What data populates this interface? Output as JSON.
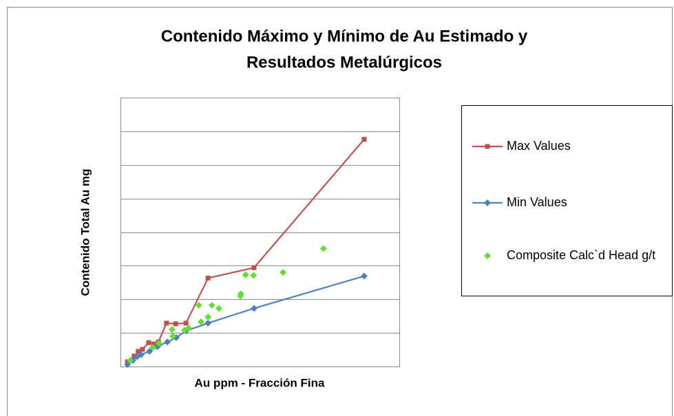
{
  "chart_data": {
    "type": "scatter",
    "title": "Contenido Máximo y Mínimo de Au Estimado  y",
    "subtitle": "Resultados Metalúrgicos",
    "xlabel": "Au ppm - Fracción Fina",
    "ylabel": "Contenido Total Au mg",
    "xlim": [
      0,
      10
    ],
    "ylim": [
      0,
      8
    ],
    "yticks": [
      1,
      2,
      3,
      4,
      5,
      6,
      7
    ],
    "grid": true,
    "legend": "right",
    "series": [
      {
        "name": "Max Values",
        "color": "#c0504d",
        "marker": "square",
        "line": true,
        "x": [
          0.25,
          0.49,
          0.64,
          0.79,
          1.01,
          1.19,
          1.36,
          1.65,
          1.98,
          2.35,
          3.14,
          4.79,
          8.74
        ],
        "values": [
          0.14,
          0.31,
          0.45,
          0.51,
          0.71,
          0.67,
          0.73,
          1.29,
          1.27,
          1.29,
          2.63,
          2.94,
          6.76
        ]
      },
      {
        "name": "Min Values",
        "color": "#4f81bd",
        "marker": "diamond",
        "line": true,
        "x": [
          0.25,
          0.44,
          0.59,
          0.74,
          1.04,
          1.33,
          1.68,
          2.0,
          2.35,
          3.14,
          4.79,
          8.74
        ],
        "values": [
          0.06,
          0.18,
          0.29,
          0.35,
          0.45,
          0.59,
          0.73,
          0.86,
          1.06,
          1.29,
          1.73,
          2.69
        ]
      },
      {
        "name": "Composite Calc`d Head g/t",
        "color": "#66dd33",
        "marker": "diamond",
        "line": false,
        "x": [
          0.35,
          1.16,
          1.38,
          1.85,
          1.88,
          2.3,
          2.44,
          2.81,
          2.89,
          3.14,
          3.28,
          3.53,
          4.3,
          4.32,
          4.49,
          4.77,
          5.83,
          7.28
        ],
        "values": [
          0.18,
          0.57,
          0.69,
          1.1,
          0.9,
          1.08,
          1.14,
          1.82,
          1.33,
          1.47,
          1.82,
          1.73,
          2.1,
          2.16,
          2.73,
          2.71,
          2.8,
          3.51
        ]
      }
    ]
  }
}
